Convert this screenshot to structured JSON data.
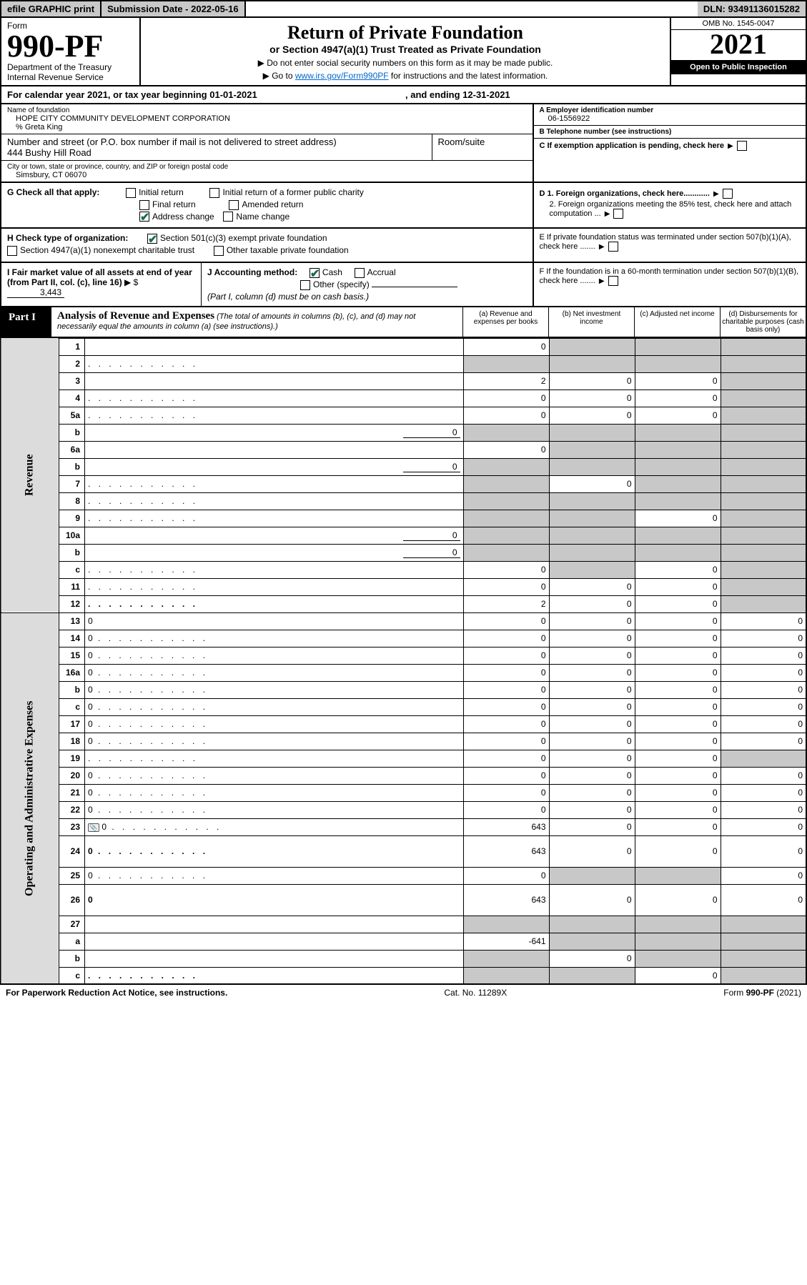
{
  "topbar": {
    "efile": "efile GRAPHIC print",
    "subdate_label": "Submission Date - ",
    "subdate": "2022-05-16",
    "dln_label": "DLN: ",
    "dln": "93491136015282"
  },
  "header": {
    "form_label": "Form",
    "form_no": "990-PF",
    "dept": "Department of the Treasury",
    "irs": "Internal Revenue Service",
    "title": "Return of Private Foundation",
    "subtitle": "or Section 4947(a)(1) Trust Treated as Private Foundation",
    "warn1": "▶ Do not enter social security numbers on this form as it may be made public.",
    "warn2_pre": "▶ Go to ",
    "warn2_link": "www.irs.gov/Form990PF",
    "warn2_post": " for instructions and the latest information.",
    "omb": "OMB No. 1545-0047",
    "year": "2021",
    "inspect": "Open to Public Inspection"
  },
  "calyear": {
    "pre": "For calendar year 2021, or tax year beginning ",
    "begin": "01-01-2021",
    "mid": ", and ending ",
    "end": "12-31-2021"
  },
  "info": {
    "name_lbl": "Name of foundation",
    "name": "HOPE CITY COMMUNITY DEVELOPMENT CORPORATION",
    "care_of": "% Greta King",
    "addr_lbl": "Number and street (or P.O. box number if mail is not delivered to street address)",
    "addr": "444 Bushy Hill Road",
    "room_lbl": "Room/suite",
    "room": "",
    "city_lbl": "City or town, state or province, country, and ZIP or foreign postal code",
    "city": "Simsbury, CT  06070",
    "ein_lbl": "A Employer identification number",
    "ein": "06-1556922",
    "tel_lbl": "B Telephone number (see instructions)",
    "tel": "",
    "c_lbl": "C If exemption application is pending, check here",
    "d1_lbl": "D 1. Foreign organizations, check here............",
    "d2_lbl": "2. Foreign organizations meeting the 85% test, check here and attach computation ...",
    "e_lbl": "E  If private foundation status was terminated under section 507(b)(1)(A), check here .......",
    "f_lbl": "F  If the foundation is in a 60-month termination under section 507(b)(1)(B), check here ......."
  },
  "g": {
    "label": "G Check all that apply:",
    "initial": "Initial return",
    "final": "Final return",
    "address": "Address change",
    "initial_former": "Initial return of a former public charity",
    "amended": "Amended return",
    "name": "Name change"
  },
  "h": {
    "label": "H Check type of organization:",
    "s501": "Section 501(c)(3) exempt private foundation",
    "s4947": "Section 4947(a)(1) nonexempt charitable trust",
    "other_tax": "Other taxable private foundation"
  },
  "i": {
    "label": "I Fair market value of all assets at end of year (from Part II, col. (c), line 16)",
    "arrow": "▶ $",
    "value": "3,443"
  },
  "j": {
    "label": "J Accounting method:",
    "cash": "Cash",
    "accrual": "Accrual",
    "other": "Other (specify)",
    "note": "(Part I, column (d) must be on cash basis.)"
  },
  "part1": {
    "label": "Part I",
    "title": "Analysis of Revenue and Expenses",
    "sub": " (The total of amounts in columns (b), (c), and (d) may not necessarily equal the amounts in column (a) (see instructions).)",
    "col_a": "(a)   Revenue and expenses per books",
    "col_b": "(b)   Net investment income",
    "col_c": "(c)   Adjusted net income",
    "col_d": "(d)   Disbursements for charitable purposes (cash basis only)"
  },
  "side": {
    "rev": "Revenue",
    "oae": "Operating and Administrative Expenses"
  },
  "rows": [
    {
      "n": "1",
      "d": "",
      "a": "0",
      "b": "",
      "c": "",
      "bgray": true,
      "cgray": true,
      "dgray": true
    },
    {
      "n": "2",
      "d": "",
      "a": "",
      "b": "",
      "c": "",
      "agray": true,
      "bgray": true,
      "cgray": true,
      "dgray": true,
      "bold": false,
      "dotted": true
    },
    {
      "n": "3",
      "d": "",
      "a": "2",
      "b": "0",
      "c": "0",
      "dgray": true
    },
    {
      "n": "4",
      "d": "",
      "a": "0",
      "b": "0",
      "c": "0",
      "dgray": true,
      "dotted": true
    },
    {
      "n": "5a",
      "d": "",
      "a": "0",
      "b": "0",
      "c": "0",
      "dgray": true,
      "dotted": true
    },
    {
      "n": "b",
      "d": "",
      "inline": "0",
      "a": "",
      "b": "",
      "c": "",
      "agray": true,
      "bgray": true,
      "cgray": true,
      "dgray": true
    },
    {
      "n": "6a",
      "d": "",
      "a": "0",
      "b": "",
      "c": "",
      "bgray": true,
      "cgray": true,
      "dgray": true
    },
    {
      "n": "b",
      "d": "",
      "inline": "0",
      "a": "",
      "b": "",
      "c": "",
      "agray": true,
      "bgray": true,
      "cgray": true,
      "dgray": true
    },
    {
      "n": "7",
      "d": "",
      "a": "",
      "b": "0",
      "c": "",
      "agray": true,
      "cgray": true,
      "dgray": true,
      "dotted": true
    },
    {
      "n": "8",
      "d": "",
      "a": "",
      "b": "",
      "c": "",
      "agray": true,
      "bgray": true,
      "cgray": true,
      "dgray": true,
      "dotted": true
    },
    {
      "n": "9",
      "d": "",
      "a": "",
      "b": "",
      "c": "0",
      "agray": true,
      "bgray": true,
      "dgray": true,
      "dotted": true
    },
    {
      "n": "10a",
      "d": "",
      "inline": "0",
      "a": "",
      "b": "",
      "c": "",
      "agray": true,
      "bgray": true,
      "cgray": true,
      "dgray": true
    },
    {
      "n": "b",
      "d": "",
      "inline": "0",
      "a": "",
      "b": "",
      "c": "",
      "agray": true,
      "bgray": true,
      "cgray": true,
      "dgray": true,
      "dotted": true
    },
    {
      "n": "c",
      "d": "",
      "a": "0",
      "b": "",
      "c": "0",
      "bgray": true,
      "dgray": true,
      "dotted": true
    },
    {
      "n": "11",
      "d": "",
      "a": "0",
      "b": "0",
      "c": "0",
      "dgray": true,
      "dotted": true
    },
    {
      "n": "12",
      "d": "",
      "a": "2",
      "b": "0",
      "c": "0",
      "dgray": true,
      "bold": true,
      "dotted": true
    },
    {
      "n": "13",
      "d": "0",
      "a": "0",
      "b": "0",
      "c": "0"
    },
    {
      "n": "14",
      "d": "0",
      "a": "0",
      "b": "0",
      "c": "0",
      "dotted": true
    },
    {
      "n": "15",
      "d": "0",
      "a": "0",
      "b": "0",
      "c": "0",
      "dotted": true
    },
    {
      "n": "16a",
      "d": "0",
      "a": "0",
      "b": "0",
      "c": "0",
      "dotted": true
    },
    {
      "n": "b",
      "d": "0",
      "a": "0",
      "b": "0",
      "c": "0",
      "dotted": true
    },
    {
      "n": "c",
      "d": "0",
      "a": "0",
      "b": "0",
      "c": "0",
      "dotted": true
    },
    {
      "n": "17",
      "d": "0",
      "a": "0",
      "b": "0",
      "c": "0",
      "dotted": true
    },
    {
      "n": "18",
      "d": "0",
      "a": "0",
      "b": "0",
      "c": "0",
      "dotted": true
    },
    {
      "n": "19",
      "d": "",
      "a": "0",
      "b": "0",
      "c": "0",
      "dgray": true,
      "dotted": true
    },
    {
      "n": "20",
      "d": "0",
      "a": "0",
      "b": "0",
      "c": "0",
      "dotted": true
    },
    {
      "n": "21",
      "d": "0",
      "a": "0",
      "b": "0",
      "c": "0",
      "dotted": true
    },
    {
      "n": "22",
      "d": "0",
      "a": "0",
      "b": "0",
      "c": "0",
      "dotted": true
    },
    {
      "n": "23",
      "d": "0",
      "a": "643",
      "b": "0",
      "c": "0",
      "sched": true,
      "dotted": true
    },
    {
      "n": "24",
      "d": "0",
      "a": "643",
      "b": "0",
      "c": "0",
      "bold": true,
      "dotted": true,
      "tall": true
    },
    {
      "n": "25",
      "d": "0",
      "a": "0",
      "b": "",
      "c": "",
      "bgray": true,
      "cgray": true,
      "dotted": true
    },
    {
      "n": "26",
      "d": "0",
      "a": "643",
      "b": "0",
      "c": "0",
      "bold": true,
      "tall": true
    },
    {
      "n": "27",
      "d": "",
      "a": "",
      "b": "",
      "c": "",
      "agray": true,
      "bgray": true,
      "cgray": true,
      "dgray": true
    },
    {
      "n": "a",
      "d": "",
      "a": "-641",
      "b": "",
      "c": "",
      "bgray": true,
      "cgray": true,
      "dgray": true,
      "bold": true
    },
    {
      "n": "b",
      "d": "",
      "a": "",
      "b": "0",
      "c": "",
      "agray": true,
      "cgray": true,
      "dgray": true,
      "bold": true
    },
    {
      "n": "c",
      "d": "",
      "a": "",
      "b": "",
      "c": "0",
      "agray": true,
      "bgray": true,
      "dgray": true,
      "bold": true,
      "dotted": true
    }
  ],
  "footer": {
    "left": "For Paperwork Reduction Act Notice, see instructions.",
    "mid": "Cat. No. 11289X",
    "right": "Form 990-PF (2021)",
    "right_bold": "990-PF"
  },
  "colors": {
    "gray": "#c8c8c8",
    "link": "#0066cc",
    "check": "#1a6b4a"
  }
}
